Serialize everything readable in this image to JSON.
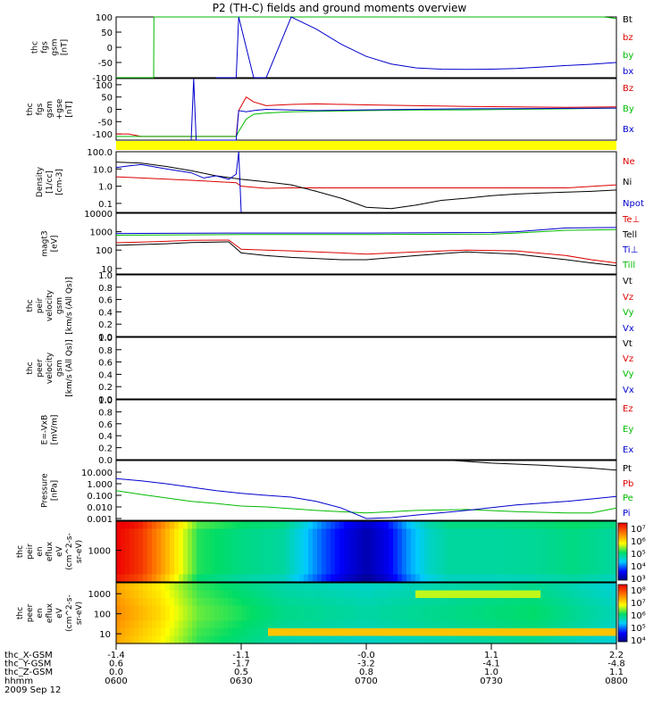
{
  "title": "P2 (TH-C) fields and ground moments overview",
  "date_label": "2009 Sep 12",
  "colors": {
    "black": "#000000",
    "red": "#dd0000",
    "green": "#00bb00",
    "blue": "#0000cc",
    "yellow": "#ffff00"
  },
  "chart_data": [
    {
      "id": "fgs",
      "type": "line",
      "ylabel": [
        "thc",
        "fgs",
        "gsm",
        "[nT]"
      ],
      "ylim": [
        -100,
        100
      ],
      "yticks": [
        "100",
        "50",
        "0",
        "-50",
        "-100"
      ],
      "series": [
        {
          "name": "Bt",
          "color": "black",
          "x": [
            6.0,
            8.0
          ],
          "y": [
            null,
            null
          ]
        },
        {
          "name": "bz",
          "color": "red",
          "x": [
            6.0,
            8.0
          ],
          "y": [
            null,
            null
          ]
        },
        {
          "name": "by",
          "color": "green",
          "x": [
            6.0,
            6.15,
            6.151,
            7.95,
            8.0
          ],
          "y": [
            -100,
            -100,
            100,
            100,
            95
          ]
        },
        {
          "name": "bx",
          "color": "blue",
          "x": [
            6.4,
            6.48,
            6.49,
            6.55,
            6.6,
            6.7,
            6.8,
            6.9,
            7.0,
            7.1,
            7.2,
            7.3,
            7.4,
            7.5,
            7.6,
            7.7,
            7.8,
            7.9,
            8.0
          ],
          "y": [
            -100,
            -100,
            100,
            -100,
            -100,
            100,
            60,
            10,
            -30,
            -55,
            -68,
            -72,
            -73,
            -72,
            -70,
            -65,
            -60,
            -56,
            -50
          ]
        }
      ]
    },
    {
      "id": "fgs2",
      "type": "line",
      "ylabel": [
        "thc",
        "fgs",
        "gsm",
        "+gse",
        "[nT]"
      ],
      "ylim": [
        -125,
        125
      ],
      "yticks": [
        "100",
        "50",
        "0",
        "-50",
        "-100"
      ],
      "series": [
        {
          "name": "Bz",
          "color": "red",
          "x": [
            6.0,
            6.05,
            6.1,
            6.48,
            6.49,
            6.52,
            6.55,
            6.6,
            6.7,
            6.8,
            7.0,
            7.2,
            7.4,
            7.6,
            7.8,
            8.0
          ],
          "y": [
            -100,
            -100,
            -110,
            -110,
            -5,
            50,
            30,
            15,
            20,
            22,
            18,
            15,
            12,
            10,
            8,
            10
          ]
        },
        {
          "name": "By",
          "color": "green",
          "x": [
            6.0,
            6.48,
            6.49,
            6.52,
            6.55,
            6.6,
            6.7,
            6.8,
            7.0,
            7.2,
            7.4,
            7.6,
            7.8,
            8.0
          ],
          "y": [
            -110,
            -110,
            -90,
            -40,
            -20,
            -15,
            -10,
            -8,
            -5,
            -3,
            -2,
            0,
            2,
            5
          ]
        },
        {
          "name": "Bx",
          "color": "blue",
          "x": [
            6.3,
            6.31,
            6.32,
            6.48,
            6.49,
            6.52,
            6.55,
            6.6,
            6.7,
            6.8,
            7.0,
            7.2,
            7.4,
            7.6,
            7.8,
            8.0
          ],
          "y": [
            -125,
            125,
            -125,
            -125,
            -5,
            -10,
            -5,
            0,
            -3,
            -5,
            -2,
            0,
            2,
            3,
            4,
            5
          ]
        }
      ]
    },
    {
      "id": "density",
      "type": "line",
      "scale": "log",
      "ylabel": [
        "Density",
        "[1/cc]",
        "[cm-3]"
      ],
      "ylim": [
        0.03,
        100
      ],
      "yticks": [
        "100.0",
        "10.0",
        "1.0",
        "0.1"
      ],
      "series": [
        {
          "name": "Ne",
          "color": "red",
          "x": [
            6.0,
            6.1,
            6.3,
            6.48,
            6.5,
            6.6,
            6.7,
            6.8,
            7.0,
            7.2,
            7.4,
            7.6,
            7.8,
            8.0
          ],
          "y": [
            3.5,
            3.0,
            2.2,
            1.6,
            1.0,
            0.75,
            0.8,
            0.8,
            0.8,
            0.8,
            0.8,
            0.8,
            0.8,
            1.2
          ]
        },
        {
          "name": "Ni",
          "color": "black",
          "x": [
            6.0,
            6.1,
            6.2,
            6.3,
            6.4,
            6.5,
            6.6,
            6.7,
            6.8,
            6.9,
            7.0,
            7.1,
            7.2,
            7.3,
            7.4,
            7.5,
            7.6,
            7.7,
            7.8,
            7.9,
            8.0
          ],
          "y": [
            25,
            22,
            14,
            8,
            4,
            2.5,
            1.8,
            1.2,
            0.5,
            0.2,
            0.06,
            0.05,
            0.08,
            0.15,
            0.2,
            0.28,
            0.35,
            0.4,
            0.45,
            0.5,
            0.6
          ]
        },
        {
          "name": "Npot",
          "color": "blue",
          "x": [
            6.0,
            6.05,
            6.1,
            6.2,
            6.3,
            6.35,
            6.4,
            6.45,
            6.48,
            6.49,
            6.5
          ],
          "y": [
            12,
            15,
            18,
            10,
            6,
            3,
            4,
            2.5,
            5,
            100,
            0.03
          ]
        }
      ]
    },
    {
      "id": "temp",
      "type": "line",
      "scale": "log",
      "ylabel": [
        "magt3",
        "[eV]"
      ],
      "ylim": [
        5,
        10000
      ],
      "yticks": [
        "10000",
        "1000",
        "100",
        "10"
      ],
      "series": [
        {
          "name": "Te⊥",
          "color": "red",
          "x": [
            6.0,
            6.1,
            6.2,
            6.3,
            6.45,
            6.5,
            6.6,
            6.7,
            6.9,
            7.0,
            7.2,
            7.4,
            7.6,
            7.8,
            7.9,
            8.0
          ],
          "y": [
            250,
            270,
            300,
            340,
            350,
            110,
            100,
            90,
            70,
            60,
            80,
            100,
            90,
            50,
            30,
            20
          ]
        },
        {
          "name": "Tell",
          "color": "black",
          "x": [
            6.0,
            6.1,
            6.2,
            6.3,
            6.45,
            6.5,
            6.6,
            6.7,
            6.9,
            7.0,
            7.2,
            7.4,
            7.6,
            7.8,
            7.9,
            8.0
          ],
          "y": [
            180,
            200,
            220,
            260,
            280,
            70,
            50,
            40,
            30,
            30,
            50,
            80,
            60,
            30,
            20,
            14
          ]
        },
        {
          "name": "Ti⊥",
          "color": "blue",
          "x": [
            6.0,
            6.5,
            7.0,
            7.5,
            7.6,
            7.8,
            8.0
          ],
          "y": [
            800,
            850,
            850,
            900,
            1000,
            1600,
            1700
          ]
        },
        {
          "name": "Till",
          "color": "green",
          "x": [
            6.0,
            6.5,
            7.0,
            7.5,
            7.6,
            7.8,
            8.0
          ],
          "y": [
            650,
            700,
            700,
            750,
            850,
            1200,
            1300
          ]
        }
      ]
    },
    {
      "id": "peir",
      "type": "line",
      "ylabel": [
        "thc",
        "peir",
        "velocity",
        "gsm",
        "[km/s (All Qs)]"
      ],
      "ylim": [
        0,
        1
      ],
      "yticks": [
        "1.0",
        "0.8",
        "0.6",
        "0.4",
        "0.2",
        "0.0"
      ],
      "series": [
        {
          "name": "Vt",
          "color": "black",
          "x": [],
          "y": []
        },
        {
          "name": "Vz",
          "color": "red",
          "x": [],
          "y": []
        },
        {
          "name": "Vy",
          "color": "green",
          "x": [],
          "y": []
        },
        {
          "name": "Vx",
          "color": "blue",
          "x": [],
          "y": []
        }
      ]
    },
    {
      "id": "peer",
      "type": "line",
      "ylabel": [
        "thc",
        "peer",
        "velocity",
        "gsm",
        "[km/s (All Qs)]"
      ],
      "ylim": [
        0,
        1
      ],
      "yticks": [
        "1.0",
        "0.8",
        "0.6",
        "0.4",
        "0.2",
        "0.0"
      ],
      "series": [
        {
          "name": "Vt",
          "color": "black",
          "x": [],
          "y": []
        },
        {
          "name": "Vz",
          "color": "red",
          "x": [],
          "y": []
        },
        {
          "name": "Vy",
          "color": "green",
          "x": [],
          "y": []
        },
        {
          "name": "Vx",
          "color": "blue",
          "x": [],
          "y": []
        }
      ]
    },
    {
      "id": "efield",
      "type": "line",
      "ylabel": [
        "E=-VxB",
        "[mV/m]"
      ],
      "ylim": [
        0,
        1
      ],
      "yticks": [
        "1.0",
        "0.8",
        "0.6",
        "0.4",
        "0.2",
        "0.0"
      ],
      "series": [
        {
          "name": "Ez",
          "color": "red",
          "x": [],
          "y": []
        },
        {
          "name": "Ey",
          "color": "green",
          "x": [],
          "y": []
        },
        {
          "name": "Ex",
          "color": "blue",
          "x": [],
          "y": []
        }
      ]
    },
    {
      "id": "pressure",
      "type": "line",
      "scale": "log",
      "ylabel": [
        "Pressure",
        "[nPa]"
      ],
      "ylim": [
        0.0007,
        100
      ],
      "yticks": [
        "10.000",
        "1.000",
        "0.100",
        "0.010",
        "0.001"
      ],
      "series": [
        {
          "name": "Pt",
          "color": "black",
          "x": [
            7.35,
            7.5,
            7.7,
            7.9,
            8.0
          ],
          "y": [
            100,
            60,
            40,
            22,
            15
          ]
        },
        {
          "name": "Pb",
          "color": "red",
          "x": [],
          "y": []
        },
        {
          "name": "Pe",
          "color": "green",
          "x": [
            6.0,
            6.1,
            6.2,
            6.3,
            6.4,
            6.5,
            6.6,
            6.8,
            7.0,
            7.2,
            7.4,
            7.6,
            7.8,
            7.9,
            8.0
          ],
          "y": [
            0.25,
            0.12,
            0.06,
            0.03,
            0.02,
            0.012,
            0.01,
            0.005,
            0.003,
            0.005,
            0.006,
            0.004,
            0.003,
            0.003,
            0.008
          ]
        },
        {
          "name": "Pi",
          "color": "blue",
          "x": [
            6.0,
            6.1,
            6.2,
            6.3,
            6.4,
            6.5,
            6.6,
            6.7,
            6.8,
            6.9,
            7.0,
            7.1,
            7.2,
            7.4,
            7.6,
            7.8,
            8.0
          ],
          "y": [
            2.8,
            1.8,
            1.0,
            0.5,
            0.25,
            0.15,
            0.1,
            0.07,
            0.03,
            0.008,
            0.001,
            0.0012,
            0.002,
            0.005,
            0.015,
            0.03,
            0.08
          ]
        }
      ]
    },
    {
      "id": "peir_spec",
      "type": "heatmap",
      "scale": "log",
      "ylabel": [
        "thc",
        "peir",
        "en",
        "eflux",
        "eV",
        "(cm^2-s-",
        "sr-eV)"
      ],
      "yticks": [
        "1000"
      ],
      "colorbar": {
        "scale": "log",
        "ticks": [
          "10⁷",
          "10⁶",
          "10⁵",
          "10⁴",
          "10³"
        ]
      },
      "bands": [
        {
          "x": 6.0,
          "level": 1.0
        },
        {
          "x": 6.1,
          "level": 0.92
        },
        {
          "x": 6.17,
          "level": 0.8
        },
        {
          "x": 6.25,
          "level": 0.65
        },
        {
          "x": 6.33,
          "level": 0.5
        },
        {
          "x": 6.5,
          "level": 0.45
        },
        {
          "x": 6.67,
          "level": 0.42
        },
        {
          "x": 6.75,
          "level": 0.33
        },
        {
          "x": 6.83,
          "level": 0.22
        },
        {
          "x": 6.92,
          "level": 0.12
        },
        {
          "x": 7.0,
          "level": 0.05
        },
        {
          "x": 7.08,
          "level": 0.12
        },
        {
          "x": 7.17,
          "level": 0.28
        },
        {
          "x": 7.25,
          "level": 0.38
        },
        {
          "x": 7.33,
          "level": 0.42
        },
        {
          "x": 7.5,
          "level": 0.42
        },
        {
          "x": 7.67,
          "level": 0.43
        },
        {
          "x": 7.83,
          "level": 0.45
        },
        {
          "x": 8.0,
          "level": 0.42
        }
      ]
    },
    {
      "id": "peer_spec",
      "type": "heatmap",
      "scale": "log",
      "ylabel": [
        "thc",
        "peer",
        "en",
        "eflux",
        "eV",
        "(cm^2-s-",
        "sr-eV)"
      ],
      "yticks": [
        "1000",
        "100",
        "10"
      ],
      "colorbar": {
        "scale": "log",
        "ticks": [
          "10⁸",
          "10⁷",
          "10⁶",
          "10⁵",
          "10⁴"
        ]
      },
      "bands": [
        {
          "x": 6.0,
          "level": 0.8
        },
        {
          "x": 6.17,
          "level": 0.7
        },
        {
          "x": 6.33,
          "level": 0.55
        },
        {
          "x": 6.67,
          "level": 0.45
        },
        {
          "x": 7.0,
          "level": 0.42
        },
        {
          "x": 7.33,
          "level": 0.45
        },
        {
          "x": 7.67,
          "level": 0.48
        },
        {
          "x": 8.0,
          "level": 0.4
        }
      ]
    }
  ],
  "x_axis": {
    "tick_hours": [
      6.0,
      6.5,
      7.0,
      7.5,
      8.0
    ],
    "rows": [
      {
        "label": "thc_X-GSM",
        "values": [
          "-1.4",
          "-1.1",
          "-0.0",
          "1.1",
          "2.2"
        ]
      },
      {
        "label": "thc_Y-GSM",
        "values": [
          "0.6",
          "-1.7",
          "-3.2",
          "-4.1",
          "-4.8"
        ]
      },
      {
        "label": "thc_Z-GSM",
        "values": [
          "0.0",
          "0.5",
          "0.8",
          "1.0",
          "1.1"
        ]
      },
      {
        "label": "hhmm",
        "values": [
          "0600",
          "0630",
          "0700",
          "0730",
          "0800"
        ]
      }
    ]
  }
}
